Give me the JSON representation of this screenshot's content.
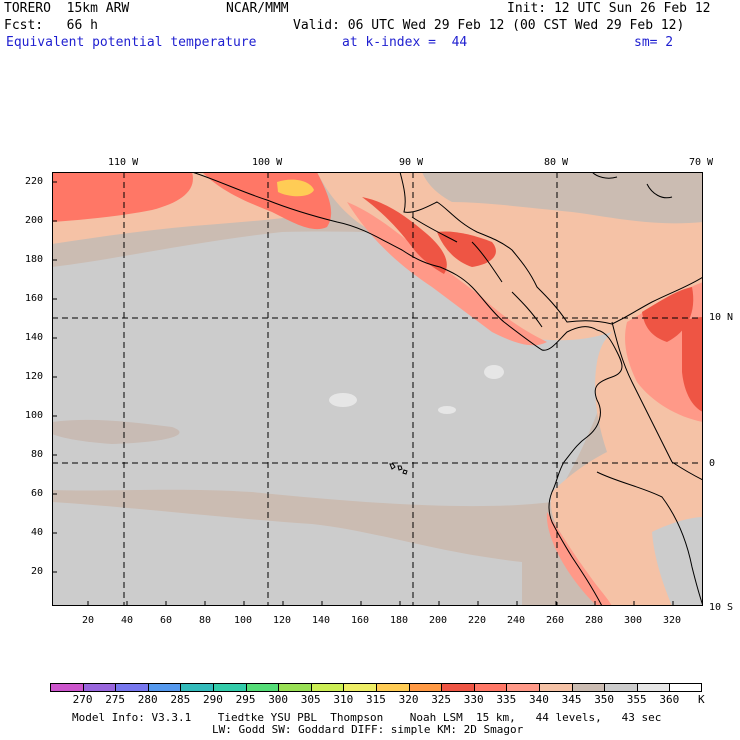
{
  "header": {
    "model": "TORERO  15km ARW",
    "center": "NCAR/MMM",
    "init": "Init: 12 UTC Sun 26 Feb 12",
    "fcst": "Fcst:   66 h",
    "valid": "Valid: 06 UTC Wed 29 Feb 12 (00 CST Wed 29 Feb 12)",
    "field": "Equivalent potential temperature",
    "level": "at k-index =  44",
    "smooth": "sm= 2"
  },
  "map": {
    "lon_labels": [
      "110 W",
      "100 W",
      "90 W",
      "80 W",
      "70 W"
    ],
    "lat_labels": [
      "10 N",
      "0",
      "10 S"
    ],
    "x_ticks": [
      "20",
      "40",
      "60",
      "80",
      "100",
      "120",
      "140",
      "160",
      "180",
      "200",
      "220",
      "240",
      "260",
      "280",
      "300",
      "320"
    ],
    "y_ticks": [
      "220",
      "200",
      "180",
      "160",
      "140",
      "120",
      "100",
      "80",
      "60",
      "40",
      "20"
    ]
  },
  "colorbar": {
    "labels": [
      "270",
      "275",
      "280",
      "285",
      "290",
      "295",
      "300",
      "305",
      "310",
      "315",
      "320",
      "325",
      "330",
      "335",
      "340",
      "345",
      "350",
      "355",
      "360"
    ],
    "unit": "K",
    "colors": [
      "#cc55cc",
      "#9966dd",
      "#7777ee",
      "#5599ee",
      "#33bbbb",
      "#33ccaa",
      "#55dd77",
      "#99e055",
      "#ccee55",
      "#eeee66",
      "#ffcc55",
      "#ff9944",
      "#ee5544",
      "#ff7766",
      "#ff9988",
      "#f5c2a6",
      "#cbbcb2",
      "#cccccc",
      "#e6e6e6",
      "#ffffff"
    ]
  },
  "footer": {
    "line1": "Model Info: V3.3.1    Tiedtke YSU PBL  Thompson    Noah LSM  15 km,   44 levels,   43 sec",
    "line2": "LW: Godd SW: Goddard DIFF: simple KM: 2D Smagor"
  }
}
